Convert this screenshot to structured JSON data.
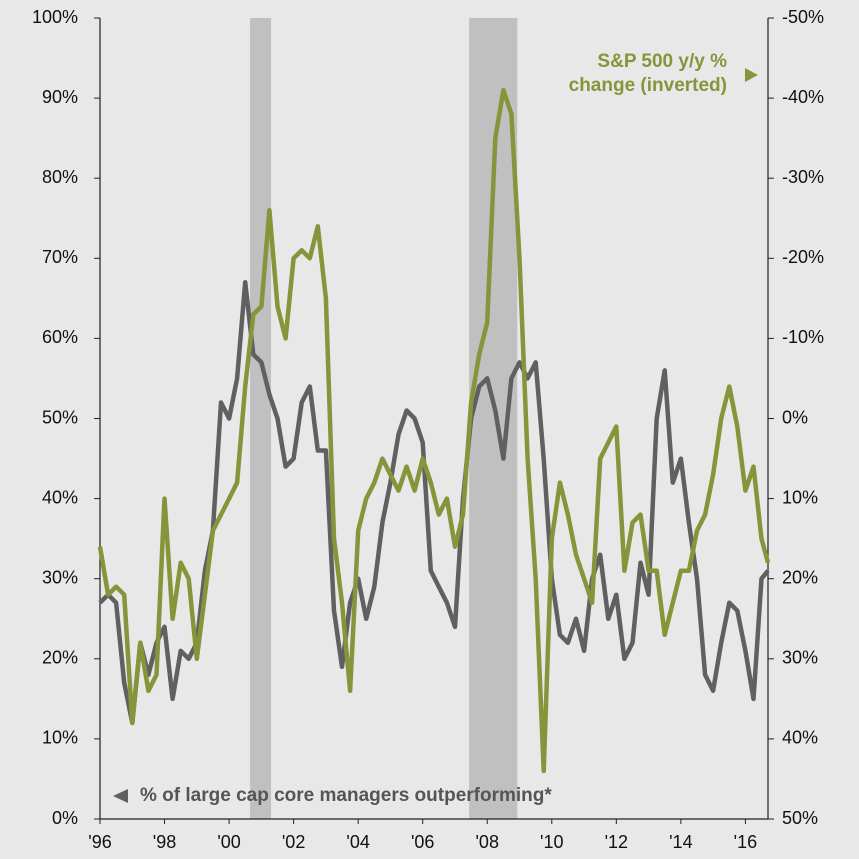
{
  "chart_data": {
    "type": "line",
    "x": [
      1996,
      1996.25,
      1996.5,
      1996.75,
      1997,
      1997.25,
      1997.5,
      1997.75,
      1998,
      1998.25,
      1998.5,
      1998.75,
      1999,
      1999.25,
      1999.5,
      1999.75,
      2000,
      2000.25,
      2000.5,
      2000.75,
      2001,
      2001.25,
      2001.5,
      2001.75,
      2002,
      2002.25,
      2002.5,
      2002.75,
      2003,
      2003.25,
      2003.5,
      2003.75,
      2004,
      2004.25,
      2004.5,
      2004.75,
      2005,
      2005.25,
      2005.5,
      2005.75,
      2006,
      2006.25,
      2006.5,
      2006.75,
      2007,
      2007.25,
      2007.5,
      2007.75,
      2008,
      2008.25,
      2008.5,
      2008.75,
      2009,
      2009.25,
      2009.5,
      2009.75,
      2010,
      2010.25,
      2010.5,
      2010.75,
      2011,
      2011.25,
      2011.5,
      2011.75,
      2012,
      2012.25,
      2012.5,
      2012.75,
      2013,
      2013.25,
      2013.5,
      2013.75,
      2014,
      2014.25,
      2014.5,
      2014.75,
      2015,
      2015.25,
      2015.5,
      2015.75,
      2016,
      2016.25,
      2016.5,
      2016.7
    ],
    "series": [
      {
        "name": "% of large cap core managers outperforming*",
        "color": "#606060",
        "values": [
          27,
          28,
          27,
          17,
          12,
          22,
          18,
          22,
          24,
          15,
          21,
          20,
          22,
          31,
          36,
          52,
          50,
          55,
          67,
          58,
          57,
          53,
          50,
          44,
          45,
          52,
          54,
          46,
          46,
          26,
          19,
          27,
          30,
          25,
          29,
          37,
          42,
          48,
          51,
          50,
          47,
          31,
          29,
          27,
          24,
          40,
          50,
          54,
          55,
          51,
          45,
          55,
          57,
          55,
          57,
          45,
          30,
          23,
          22,
          25,
          21,
          30,
          33,
          25,
          28,
          20,
          22,
          32,
          28,
          50,
          56,
          42,
          45,
          37,
          30,
          18,
          16,
          22,
          27,
          26,
          21,
          15,
          30,
          31
        ]
      },
      {
        "name": "S&P 500 y/y % change (inverted)",
        "color": "#86943a",
        "axis": "y2",
        "values": [
          16,
          22,
          21,
          22,
          38,
          28,
          34,
          32,
          10,
          25,
          18,
          20,
          30,
          22,
          14,
          12,
          10,
          8,
          -4,
          -13,
          -14,
          -26,
          -14,
          -10,
          -20,
          -21,
          -20,
          -24,
          -15,
          15,
          23,
          34,
          14,
          10,
          8,
          5,
          7,
          9,
          6,
          9,
          5,
          8,
          12,
          10,
          16,
          12,
          -2,
          -8,
          -12,
          -35,
          -41,
          -38,
          -20,
          5,
          20,
          44,
          15,
          8,
          12,
          17,
          20,
          23,
          5,
          3,
          1,
          19,
          13,
          12,
          19,
          19,
          27,
          23,
          19,
          19,
          14,
          12,
          7,
          0,
          -4,
          1,
          9,
          6,
          15,
          18
        ]
      }
    ],
    "recessions": [
      [
        2000.65,
        2001.3
      ],
      [
        2007.44,
        2008.93
      ]
    ],
    "xlim": [
      1996,
      2016.7
    ],
    "xticks": [
      {
        "value": 1996,
        "label": "'96"
      },
      {
        "value": 1998,
        "label": "'98"
      },
      {
        "value": 2000,
        "label": "'00"
      },
      {
        "value": 2002,
        "label": "'02"
      },
      {
        "value": 2004,
        "label": "'04"
      },
      {
        "value": 2006,
        "label": "'06"
      },
      {
        "value": 2008,
        "label": "'08"
      },
      {
        "value": 2010,
        "label": "'10"
      },
      {
        "value": 2012,
        "label": "'12"
      },
      {
        "value": 2014,
        "label": "'14"
      },
      {
        "value": 2016,
        "label": "'16"
      }
    ],
    "ylim": [
      0,
      100
    ],
    "yticks": [
      {
        "value": 0,
        "label": "0%"
      },
      {
        "value": 10,
        "label": "10%"
      },
      {
        "value": 20,
        "label": "20%"
      },
      {
        "value": 30,
        "label": "30%"
      },
      {
        "value": 40,
        "label": "40%"
      },
      {
        "value": 50,
        "label": "50%"
      },
      {
        "value": 60,
        "label": "60%"
      },
      {
        "value": 70,
        "label": "70%"
      },
      {
        "value": 80,
        "label": "80%"
      },
      {
        "value": 90,
        "label": "90%"
      },
      {
        "value": 100,
        "label": "100%"
      }
    ],
    "y2lim": [
      50,
      -50
    ],
    "y2ticks": [
      {
        "value": 50,
        "label": "50%"
      },
      {
        "value": 40,
        "label": "40%"
      },
      {
        "value": 30,
        "label": "30%"
      },
      {
        "value": 20,
        "label": "20%"
      },
      {
        "value": 10,
        "label": "10%"
      },
      {
        "value": 0,
        "label": "0%"
      },
      {
        "value": -10,
        "label": "-10%"
      },
      {
        "value": -20,
        "label": "-20%"
      },
      {
        "value": -30,
        "label": "-30%"
      },
      {
        "value": -40,
        "label": "-40%"
      },
      {
        "value": -50,
        "label": "-50%"
      }
    ]
  }
}
